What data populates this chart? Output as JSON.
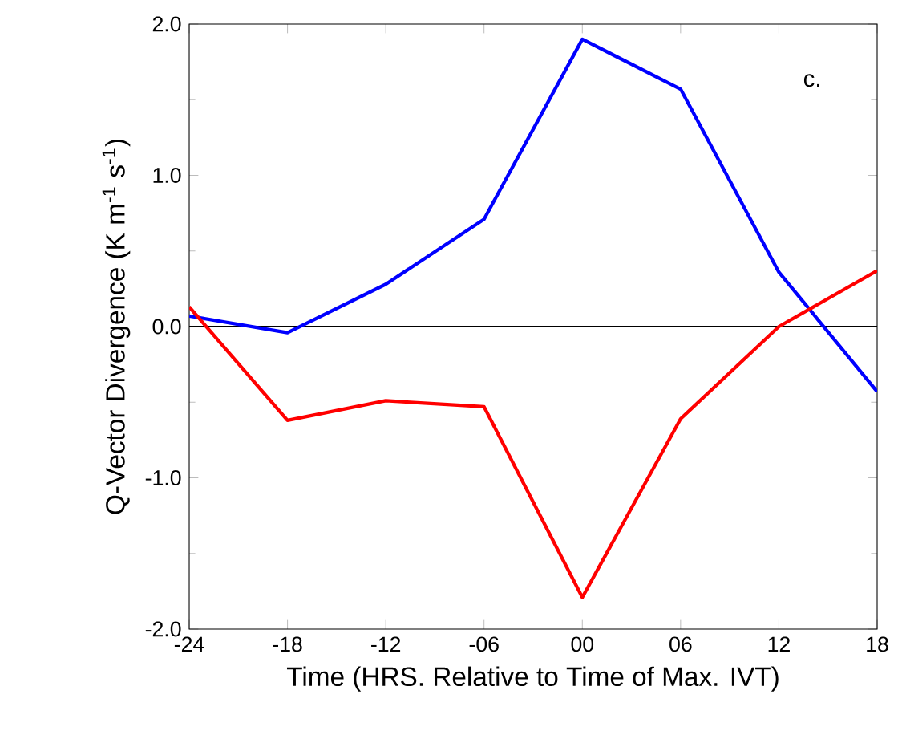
{
  "chart_data": {
    "type": "line",
    "xlabel": "Time (HRS. Relative to Time of Max. IVT)",
    "ylabel": "Q-Vector Divergence (K m$^{-1}$ s$^{-1}$)",
    "annotations": [
      "c."
    ],
    "x": [
      -24,
      -18,
      -12,
      -6,
      0,
      6,
      12,
      18
    ],
    "series": [
      {
        "color": "#0000ff",
        "values": [
          0.07,
          -0.04,
          0.28,
          0.71,
          1.9,
          1.57,
          0.36,
          -0.43
        ]
      },
      {
        "color": "#ff0000",
        "values": [
          0.13,
          -0.62,
          -0.49,
          -0.53,
          -1.79,
          -0.61,
          0.0,
          0.37
        ]
      }
    ],
    "xlim": [
      -24,
      18
    ],
    "ylim": [
      -2.0,
      2.0
    ],
    "xticks": [
      -24,
      -18,
      -12,
      {
        "value": -6,
        "label": "-06"
      },
      {
        "value": 0,
        "label": "00"
      },
      {
        "value": 6,
        "label": "06"
      },
      12,
      18
    ],
    "yticks": [
      {
        "value": -2,
        "label": "-2.0"
      },
      {
        "value": -1,
        "label": "-1.0"
      },
      {
        "value": 0,
        "label": "0.0"
      },
      {
        "value": 1,
        "label": "1.0"
      },
      {
        "value": 2,
        "label": "2.0"
      }
    ],
    "ref_lines": [
      {
        "axis": "y",
        "value": 0,
        "color": "#000000"
      }
    ]
  }
}
